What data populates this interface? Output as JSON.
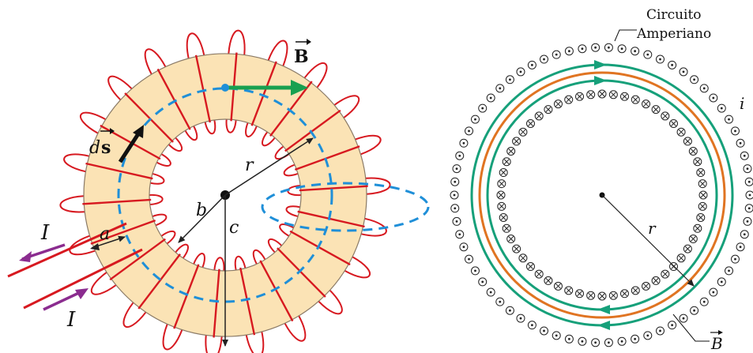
{
  "left_figure": {
    "labels": {
      "B_field": "B",
      "ds": "ds",
      "d_prefix": "d",
      "r": "r",
      "a": "a",
      "b": "b",
      "c": "c",
      "current_in": "I",
      "current_out": "I"
    },
    "coil_turns": 22,
    "colors": {
      "torus_fill": "#fbe3b5",
      "torus_edge": "#8a7a66",
      "wire": "#d71920",
      "amperian_path": "#1f8fd8",
      "B_arrow": "#18a050",
      "current_arrow": "#8b2c8f",
      "dimension_arrow": "#222222"
    }
  },
  "right_figure": {
    "labels": {
      "amperian_title_line1": "Circuito",
      "amperian_title_line2": "Amperiano",
      "current": "i",
      "radius": "r",
      "B_field": "B"
    },
    "outer_marker_symbol": "dot",
    "inner_marker_symbol": "cross",
    "outer_marker_count": 70,
    "inner_marker_count": 56,
    "colors": {
      "field_lines": "#16a07a",
      "amperian_loop": "#e07422",
      "marker": "#222222"
    }
  }
}
